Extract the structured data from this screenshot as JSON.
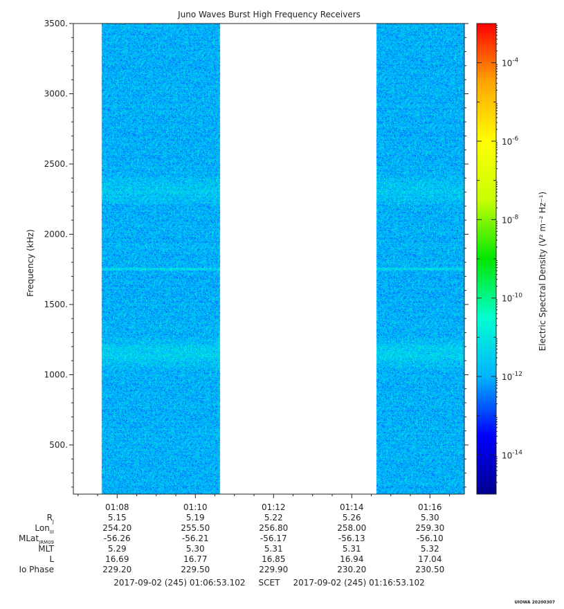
{
  "chart_data": {
    "type": "heatmap",
    "title": "Juno Waves Burst High Frequency Receivers",
    "ylabel": "Frequency (kHz)",
    "colorbar_label": "Electric Spectral Density (V² m⁻² Hz⁻¹)",
    "ylim": [
      150,
      3500
    ],
    "y_ticks": [
      500,
      1000,
      1500,
      2000,
      2500,
      3000,
      3500
    ],
    "y_tick_labels": [
      "500.",
      "1000.",
      "1500.",
      "2000.",
      "2500.",
      "3000.",
      "3500."
    ],
    "time_range_min": [
      66.88,
      76.88
    ],
    "x_ticks_min": [
      68,
      70,
      72,
      74,
      76
    ],
    "x_tick_labels": [
      "01:08",
      "01:10",
      "01:12",
      "01:14",
      "01:16"
    ],
    "data_blocks_min": [
      [
        67.6,
        70.62
      ],
      [
        74.62,
        77.57
      ]
    ],
    "enhanced_bands_khz": [
      {
        "center": 1150,
        "width": 90,
        "strength": 1.0
      },
      {
        "center": 2310,
        "width": 80,
        "strength": 0.7
      },
      {
        "center": 1755,
        "width": 10,
        "strength": 1.6
      }
    ],
    "colorbar": {
      "log_range": [
        -15,
        -3
      ],
      "tick_exponents": [
        -14,
        -12,
        -10,
        -8,
        -6,
        -4
      ],
      "tick_labels": [
        "10-14",
        "10-12",
        "10-10",
        "10-8",
        "10-6",
        "10-4"
      ],
      "colormap": [
        "#00008f",
        "#0000ff",
        "#00b4ff",
        "#00ffd0",
        "#00e600",
        "#c8ff00",
        "#ffff00",
        "#ffa500",
        "#ff0000"
      ]
    },
    "typical_log_psd": -11.9,
    "ephemeris": {
      "rows": [
        {
          "label": "R",
          "sub": "J",
          "values": [
            "5.15",
            "5.19",
            "5.22",
            "5.26",
            "5.30"
          ]
        },
        {
          "label": "Lon",
          "sub": "III",
          "values": [
            "254.20",
            "255.50",
            "256.80",
            "258.00",
            "259.30"
          ]
        },
        {
          "label": "MLat",
          "sub": "JRM09",
          "values": [
            "-56.26",
            "-56.21",
            "-56.17",
            "-56.13",
            "-56.10"
          ]
        },
        {
          "label": "MLT",
          "sub": "",
          "values": [
            "5.29",
            "5.30",
            "5.31",
            "5.31",
            "5.32"
          ]
        },
        {
          "label": "L",
          "sub": "",
          "values": [
            "16.69",
            "16.77",
            "16.85",
            "16.94",
            "17.04"
          ]
        },
        {
          "label": "Io Phase",
          "sub": "",
          "values": [
            "229.20",
            "229.50",
            "229.90",
            "230.20",
            "230.50"
          ]
        }
      ]
    },
    "time_footer": "2017-09-02 (245) 01:06:53.102     SCET     2017-09-02 (245) 01:16:53.102",
    "credit": "UIOWA 20200307"
  }
}
